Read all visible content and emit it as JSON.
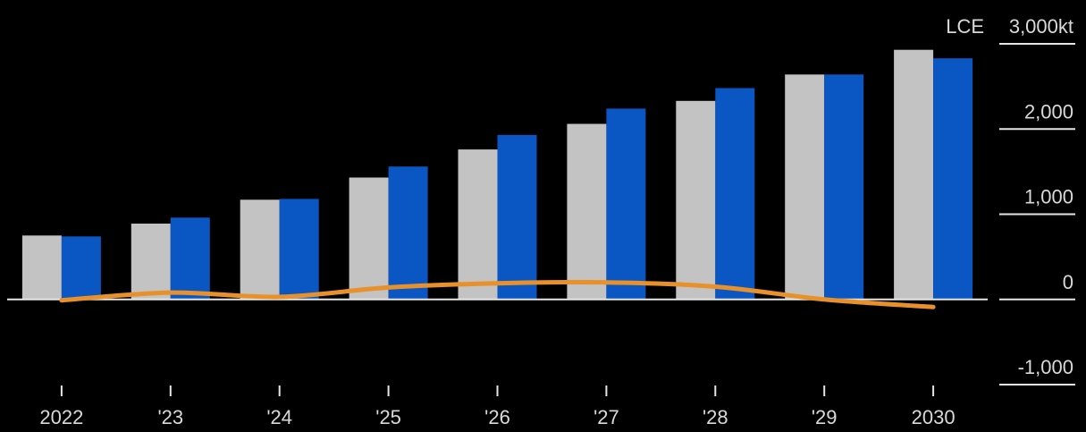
{
  "chart_data": {
    "type": "bar",
    "categories": [
      "2022",
      "'23",
      "'24",
      "'25",
      "'26",
      "'27",
      "'28",
      "'29",
      "2030"
    ],
    "series": [
      {
        "type": "bar",
        "color": "#c3c3c3",
        "values": [
          750,
          890,
          1170,
          1430,
          1760,
          2060,
          2330,
          2640,
          2930
        ]
      },
      {
        "type": "bar",
        "color": "#0a56c2",
        "values": [
          740,
          960,
          1180,
          1560,
          1930,
          2240,
          2480,
          2640,
          2830
        ]
      },
      {
        "type": "line",
        "color": "#e8912a",
        "values": [
          -10,
          80,
          30,
          140,
          190,
          200,
          150,
          0,
          -90
        ]
      }
    ],
    "y_axis": {
      "min": -1000,
      "max": 3000,
      "ticks": [
        -1000,
        0,
        1000,
        2000,
        3000
      ],
      "tick_labels": [
        "-1,000",
        "0",
        "1,000",
        "2,000",
        "3,000kt"
      ],
      "unit_prefix": "LCE",
      "position": "right"
    },
    "grid": false
  }
}
